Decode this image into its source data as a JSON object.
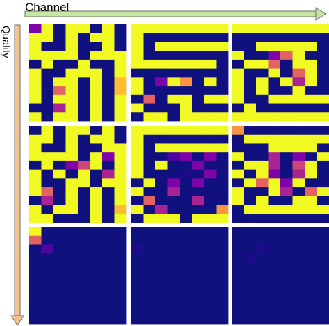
{
  "labels": {
    "channel": "Channel",
    "quality": "Quality"
  },
  "arrows": {
    "channel_color": "#c6e7a0",
    "quality_color": "#f4c28e"
  },
  "palette": {
    "0": "#10107f",
    "1": "#1c0c8a",
    "2": "#4b06a0",
    "3": "#7e03a8",
    "4": "#aa2395",
    "5": "#cc4778",
    "6": "#e16462",
    "7": "#f89540",
    "8": "#fdbf30",
    "9": "#f0f921"
  },
  "grid": {
    "rows": [
      [
        [
          [
            3,
            9,
            0,
            9,
            9,
            0,
            9,
            0
          ],
          [
            9,
            9,
            0,
            9,
            0,
            9,
            9,
            0
          ],
          [
            9,
            0,
            0,
            9,
            0,
            0,
            9,
            0
          ],
          [
            9,
            9,
            9,
            9,
            0,
            9,
            9,
            9
          ],
          [
            0,
            9,
            0,
            0,
            9,
            0,
            0,
            9
          ],
          [
            9,
            0,
            0,
            9,
            9,
            9,
            0,
            9
          ],
          [
            9,
            0,
            9,
            9,
            0,
            9,
            0,
            8
          ],
          [
            9,
            0,
            6,
            9,
            0,
            9,
            0,
            8
          ],
          [
            9,
            0,
            9,
            9,
            0,
            9,
            0,
            9
          ],
          [
            0,
            0,
            4,
            9,
            0,
            9,
            0,
            9
          ],
          [
            9,
            0,
            9,
            9,
            0,
            9,
            0,
            9
          ]
        ],
        [
          [
            9,
            9,
            9,
            9,
            9,
            9,
            9,
            9
          ],
          [
            9,
            0,
            0,
            0,
            0,
            0,
            0,
            0
          ],
          [
            9,
            0,
            9,
            9,
            9,
            9,
            9,
            9
          ],
          [
            9,
            0,
            0,
            0,
            0,
            0,
            0,
            0
          ],
          [
            9,
            9,
            9,
            9,
            9,
            9,
            9,
            0
          ],
          [
            0,
            0,
            0,
            0,
            0,
            0,
            0,
            0
          ],
          [
            9,
            0,
            3,
            9,
            7,
            0,
            9,
            0
          ],
          [
            9,
            0,
            0,
            0,
            0,
            0,
            0,
            0
          ],
          [
            0,
            6,
            0,
            9,
            9,
            0,
            9,
            9
          ],
          [
            9,
            0,
            0,
            0,
            9,
            0,
            0,
            0
          ],
          [
            0,
            9,
            9,
            0,
            9,
            9,
            9,
            9
          ]
        ],
        [
          [
            9,
            9,
            9,
            9,
            9,
            9,
            9,
            9
          ],
          [
            0,
            0,
            0,
            0,
            0,
            0,
            0,
            0
          ],
          [
            0,
            0,
            9,
            9,
            9,
            9,
            9,
            0
          ],
          [
            9,
            0,
            0,
            3,
            6,
            9,
            0,
            0
          ],
          [
            0,
            9,
            9,
            6,
            0,
            9,
            9,
            0
          ],
          [
            9,
            0,
            0,
            9,
            0,
            6,
            9,
            0
          ],
          [
            9,
            0,
            9,
            0,
            9,
            4,
            9,
            0
          ],
          [
            9,
            0,
            9,
            0,
            0,
            9,
            0,
            0
          ],
          [
            9,
            0,
            0,
            9,
            9,
            9,
            9,
            9
          ],
          [
            0,
            9,
            0,
            0,
            0,
            0,
            0,
            0
          ],
          [
            9,
            9,
            9,
            9,
            9,
            9,
            9,
            9
          ]
        ]
      ],
      [
        [
          [
            0,
            9,
            0,
            9,
            9,
            0,
            9,
            0
          ],
          [
            9,
            9,
            0,
            9,
            0,
            9,
            9,
            0
          ],
          [
            9,
            0,
            0,
            9,
            0,
            0,
            9,
            9
          ],
          [
            9,
            9,
            9,
            9,
            0,
            9,
            3,
            9
          ],
          [
            0,
            9,
            0,
            3,
            5,
            9,
            0,
            9
          ],
          [
            9,
            0,
            9,
            0,
            9,
            0,
            4,
            9
          ],
          [
            9,
            0,
            0,
            9,
            9,
            0,
            9,
            9
          ],
          [
            9,
            6,
            0,
            9,
            0,
            9,
            0,
            9
          ],
          [
            0,
            4,
            0,
            9,
            0,
            9,
            0,
            9
          ],
          [
            9,
            0,
            9,
            9,
            0,
            9,
            0,
            8
          ],
          [
            9,
            9,
            0,
            0,
            0,
            9,
            0,
            9
          ]
        ],
        [
          [
            9,
            9,
            9,
            9,
            9,
            9,
            9,
            9
          ],
          [
            9,
            0,
            0,
            0,
            0,
            0,
            0,
            0
          ],
          [
            9,
            0,
            9,
            9,
            9,
            9,
            9,
            9
          ],
          [
            9,
            0,
            0,
            2,
            3,
            0,
            3,
            0
          ],
          [
            9,
            0,
            9,
            0,
            0,
            3,
            0,
            0
          ],
          [
            9,
            0,
            0,
            0,
            1,
            0,
            3,
            0
          ],
          [
            0,
            9,
            0,
            3,
            0,
            3,
            0,
            0
          ],
          [
            9,
            0,
            0,
            4,
            0,
            0,
            0,
            0
          ],
          [
            0,
            6,
            0,
            0,
            0,
            4,
            0,
            0
          ],
          [
            9,
            0,
            4,
            0,
            0,
            0,
            0,
            7
          ],
          [
            0,
            9,
            9,
            9,
            0,
            9,
            9,
            9
          ]
        ],
        [
          [
            7,
            0,
            0,
            0,
            0,
            0,
            0,
            0
          ],
          [
            0,
            9,
            9,
            9,
            9,
            9,
            9,
            9
          ],
          [
            0,
            0,
            0,
            9,
            9,
            9,
            9,
            0
          ],
          [
            9,
            0,
            0,
            4,
            0,
            3,
            0,
            9
          ],
          [
            0,
            9,
            9,
            4,
            0,
            5,
            9,
            0
          ],
          [
            9,
            0,
            9,
            3,
            0,
            4,
            9,
            0
          ],
          [
            0,
            9,
            6,
            9,
            3,
            9,
            0,
            0
          ],
          [
            9,
            0,
            0,
            9,
            4,
            0,
            6,
            9
          ],
          [
            9,
            0,
            9,
            0,
            0,
            9,
            9,
            0
          ],
          [
            0,
            9,
            9,
            9,
            9,
            9,
            9,
            9
          ],
          [
            0,
            0,
            0,
            0,
            0,
            0,
            0,
            0
          ]
        ]
      ],
      [
        [
          [
            9,
            0,
            0,
            0,
            0,
            0,
            0,
            0
          ],
          [
            6,
            0,
            0,
            0,
            0,
            0,
            0,
            0
          ],
          [
            0,
            2,
            0,
            0,
            0,
            0,
            0,
            0
          ],
          [
            0,
            0,
            0,
            0,
            0,
            0,
            0,
            0
          ],
          [
            0,
            0,
            0,
            0,
            0,
            0,
            0,
            0
          ],
          [
            0,
            0,
            0,
            0,
            0,
            0,
            0,
            0
          ],
          [
            0,
            0,
            0,
            0,
            0,
            0,
            0,
            0
          ],
          [
            0,
            0,
            0,
            0,
            0,
            0,
            0,
            0
          ],
          [
            0,
            0,
            0,
            0,
            0,
            0,
            0,
            0
          ],
          [
            0,
            0,
            0,
            0,
            0,
            0,
            0,
            0
          ],
          [
            0,
            0,
            0,
            0,
            0,
            0,
            0,
            0
          ]
        ],
        [
          [
            0,
            0,
            0,
            0,
            0,
            0,
            0,
            0
          ],
          [
            0,
            0,
            0,
            0,
            0,
            0,
            0,
            0
          ],
          [
            1,
            0,
            0,
            0,
            0,
            0,
            0,
            0
          ],
          [
            0,
            0,
            0,
            0,
            0,
            0,
            0,
            0
          ],
          [
            0,
            0,
            0,
            0,
            0,
            0,
            0,
            0
          ],
          [
            0,
            0,
            0,
            0,
            0,
            0,
            0,
            0
          ],
          [
            0,
            0,
            0,
            0,
            0,
            0,
            0,
            0
          ],
          [
            0,
            0,
            0,
            0,
            0,
            0,
            0,
            0
          ],
          [
            0,
            0,
            0,
            0,
            0,
            0,
            0,
            0
          ],
          [
            0,
            0,
            0,
            0,
            0,
            0,
            0,
            0
          ],
          [
            0,
            0,
            0,
            0,
            0,
            0,
            0,
            0
          ]
        ],
        [
          [
            0,
            0,
            0,
            0,
            0,
            0,
            0,
            0
          ],
          [
            0,
            0,
            0,
            0,
            0,
            0,
            0,
            0
          ],
          [
            0,
            0,
            1,
            0,
            0,
            0,
            0,
            0
          ],
          [
            0,
            1,
            0,
            0,
            0,
            0,
            0,
            0
          ],
          [
            0,
            0,
            0,
            0,
            0,
            0,
            0,
            0
          ],
          [
            0,
            0,
            0,
            0,
            0,
            0,
            0,
            0
          ],
          [
            0,
            0,
            0,
            0,
            0,
            0,
            0,
            0
          ],
          [
            0,
            0,
            0,
            0,
            0,
            0,
            0,
            0
          ],
          [
            0,
            0,
            0,
            0,
            0,
            0,
            0,
            0
          ],
          [
            0,
            0,
            0,
            0,
            0,
            0,
            0,
            0
          ],
          [
            0,
            0,
            0,
            0,
            0,
            0,
            0,
            0
          ]
        ]
      ]
    ]
  }
}
